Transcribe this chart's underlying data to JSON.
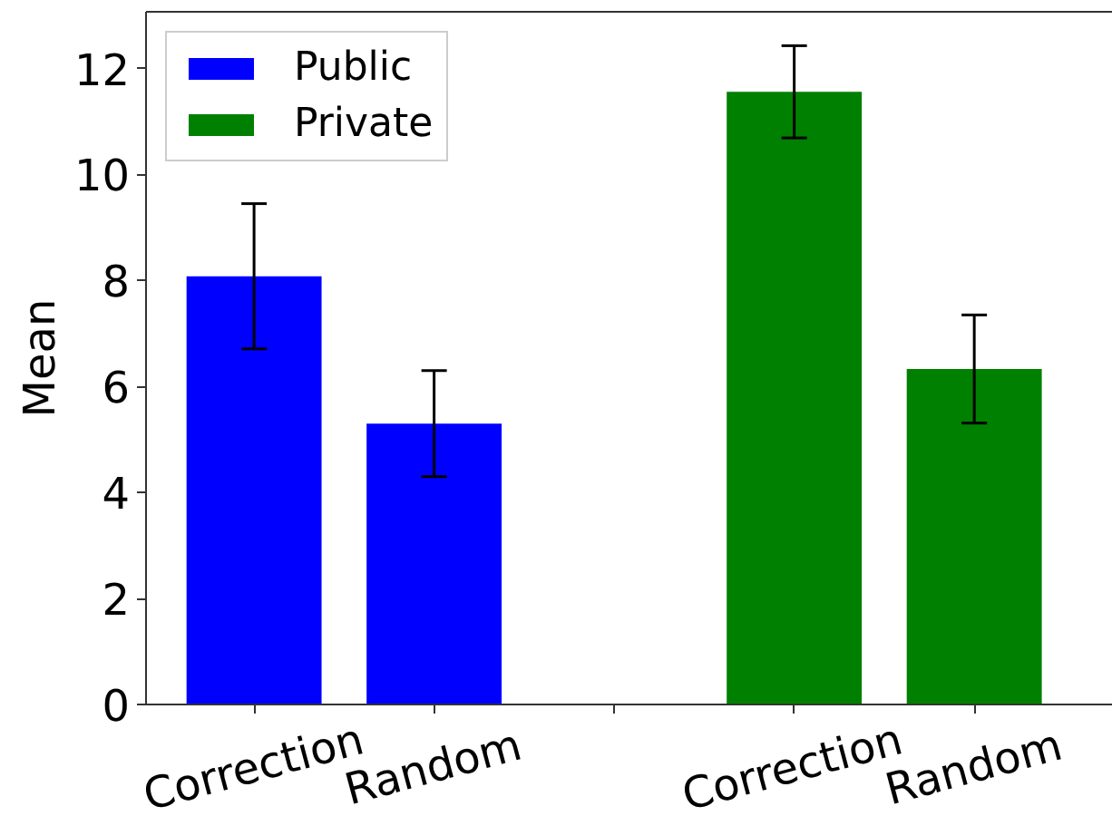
{
  "chart_data": {
    "type": "bar",
    "ylabel": "Mean",
    "categories": [
      "Correction",
      "Random",
      null,
      "Correction",
      "Random"
    ],
    "series": [
      {
        "name": "Public",
        "color": "#0000ff",
        "values": [
          8.08,
          5.3,
          null,
          null,
          null
        ],
        "errors": [
          1.37,
          1.0,
          null,
          null,
          null
        ]
      },
      {
        "name": "Private",
        "color": "#008000",
        "values": [
          null,
          null,
          null,
          11.56,
          6.33
        ],
        "errors": [
          null,
          null,
          null,
          0.87,
          1.02
        ]
      }
    ],
    "ylim": [
      0,
      13.07
    ],
    "yticks": [
      0,
      2,
      4,
      6,
      8,
      10,
      12
    ],
    "grid": false,
    "legend": "top left"
  }
}
